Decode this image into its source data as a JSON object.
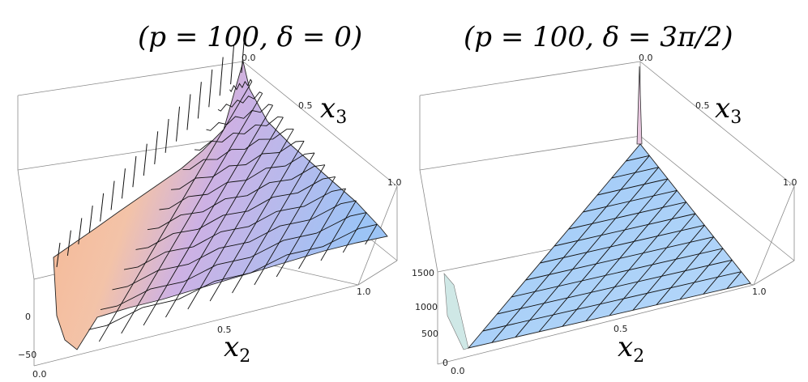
{
  "panels": [
    {
      "title": "(p = 100, δ = 0)",
      "x3_label": "x",
      "x3_sub": "3",
      "x2_label": "x",
      "x2_sub": "2",
      "x3_ticks": [
        "0.0",
        "0.5",
        "1.0"
      ],
      "x2_ticks": [
        "0.0",
        "0.5",
        "1.0"
      ],
      "z_ticks": [
        "0",
        "−50"
      ]
    },
    {
      "title": "(p = 100, δ = 3π/2)",
      "x3_label": "x",
      "x3_sub": "3",
      "x2_label": "x",
      "x2_sub": "2",
      "x3_ticks": [
        "0.0",
        "0.5",
        "1.0"
      ],
      "x2_ticks": [
        "0.0",
        "0.5",
        "1.0"
      ],
      "z_ticks": [
        "1500",
        "1000",
        "500",
        "0"
      ]
    }
  ],
  "chart_data": [
    {
      "type": "surface3d",
      "title": "(p = 100, δ = 0)",
      "xlabel": "x2",
      "ylabel": "x3",
      "xlim": [
        0,
        1
      ],
      "ylim": [
        0,
        1
      ],
      "z_ticks": [
        0,
        -50
      ],
      "domain": "triangle x2 + x3 <= 1",
      "colors": {
        "high": "#f6b48c",
        "mid": "#d9a6d6",
        "low": "#9ec4f5",
        "mesh": "#111111"
      }
    },
    {
      "type": "surface3d",
      "title": "(p = 100, δ = 3π/2)",
      "xlabel": "x2",
      "ylabel": "x3",
      "xlim": [
        0,
        1
      ],
      "ylim": [
        0,
        1
      ],
      "z_ticks": [
        1500,
        1000,
        500,
        0
      ],
      "domain": "triangle x2 + x3 <= 1",
      "colors": {
        "surface": "#a9cff7",
        "mesh": "#111111"
      }
    }
  ]
}
